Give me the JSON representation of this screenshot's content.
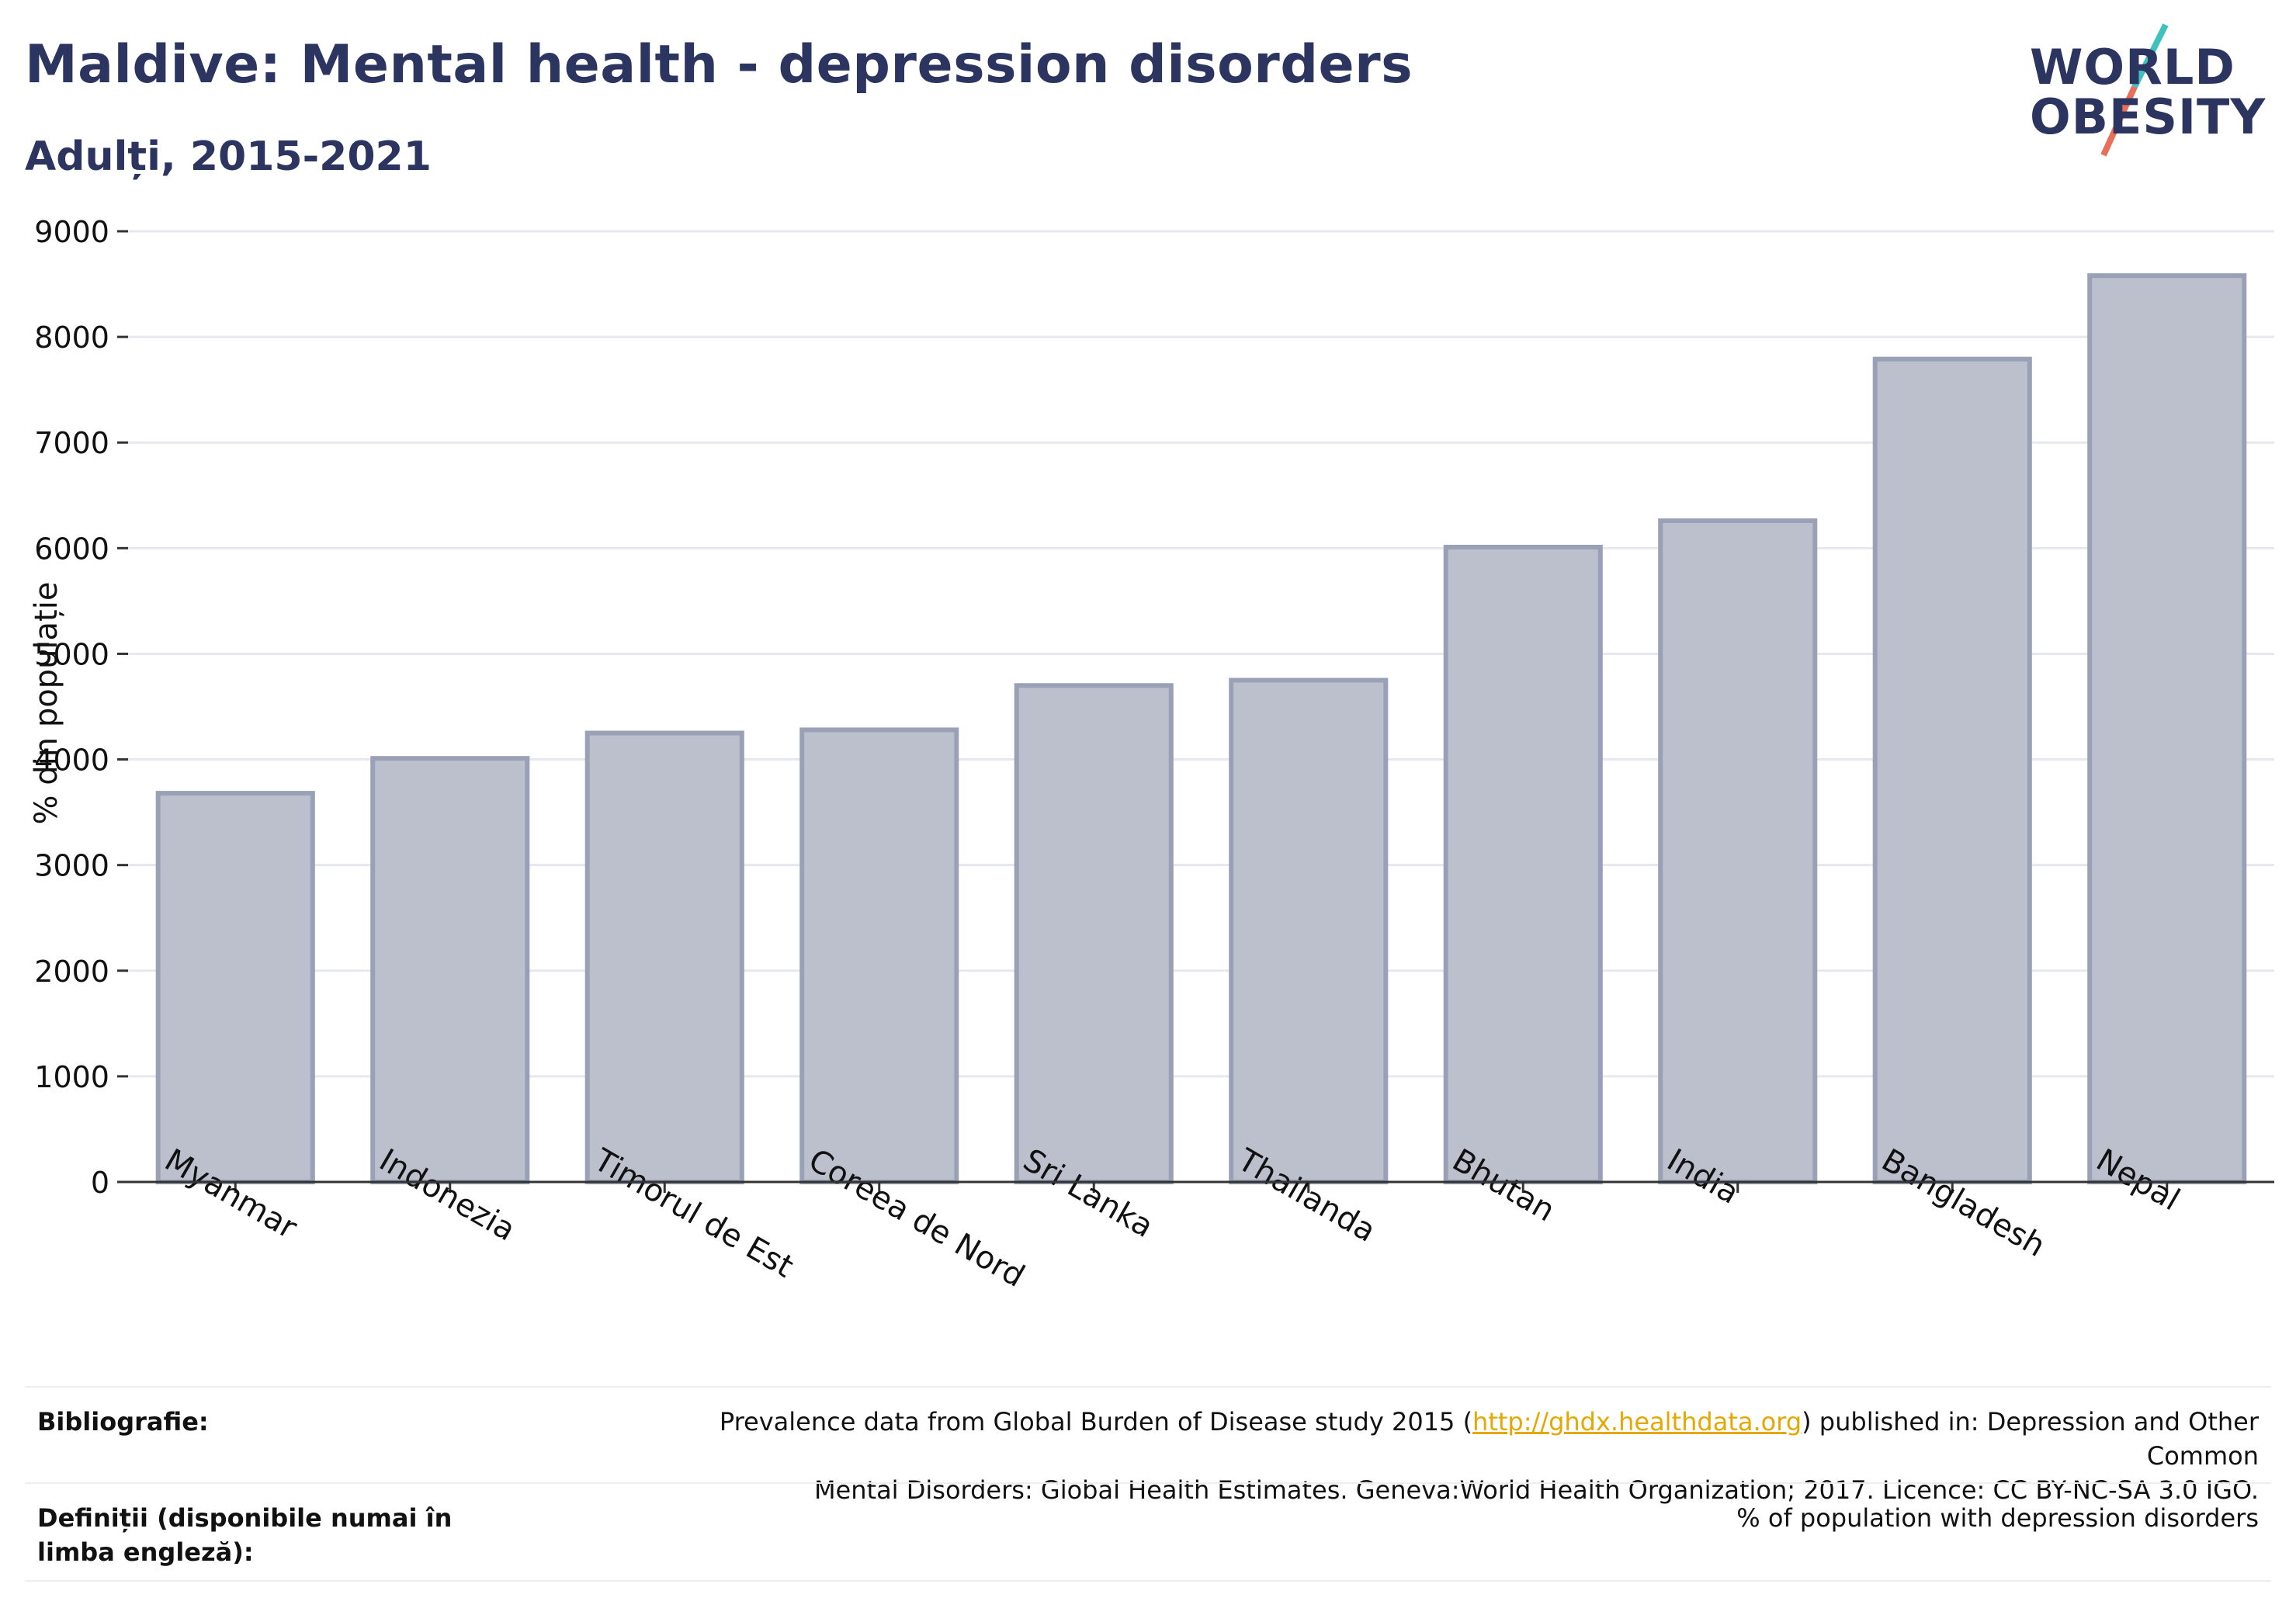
{
  "header": {
    "title": "Maldive: Mental health - depression disorders",
    "subtitle": "Adulți, 2015-2021"
  },
  "logo": {
    "line1": "WORLD",
    "line2": "OBESITY",
    "accent_colors": [
      "#3fc1c0",
      "#e8705a"
    ]
  },
  "chart_data": {
    "type": "bar",
    "categories": [
      "Myanmar",
      "Indonezia",
      "Timorul de Est",
      "Coreea de Nord",
      "Sri Lanka",
      "Thailanda",
      "Bhutan",
      "India",
      "Bangladesh",
      "Nepal"
    ],
    "values": [
      3680,
      4010,
      4250,
      4280,
      4700,
      4750,
      6010,
      6260,
      7790,
      8580
    ],
    "ylabel": "% din populație",
    "ylim": [
      0,
      9000
    ],
    "yticks": [
      0,
      1000,
      2000,
      3000,
      4000,
      5000,
      6000,
      7000,
      8000,
      9000
    ],
    "grid": true,
    "bar_fill": "#bcc0cd",
    "bar_stroke": "#9aa0b6"
  },
  "footer": {
    "bibliography_label": "Bibliografie:",
    "bibliography_pre": "Prevalence data from Global Burden of Disease study 2015 (",
    "bibliography_link": "http://ghdx.healthdata.org",
    "bibliography_post": ") published in: Depression and Other Common",
    "bibliography_line2": "Mental Disorders: Global Health Estimates. Geneva:World Health Organization; 2017. Licence: CC BY-NC-SA 3.0 IGO.",
    "definitions_label": "Definiții (disponibile numai în limba engleză):",
    "definitions_value": "% of population with depression disorders"
  }
}
